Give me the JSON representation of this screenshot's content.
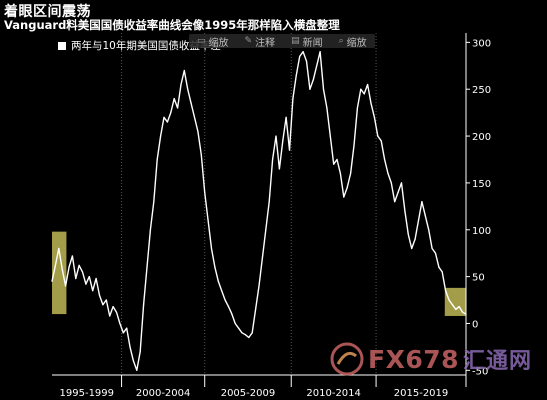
{
  "header": {
    "title": "着眼区间震荡",
    "subtitle": "Vanguard料美国国债收益率曲线会像1995年那样陷入横盘整理"
  },
  "legend": {
    "label": "两年与10年期美国国债收益率差"
  },
  "toolbar": {
    "items": [
      {
        "label": "缩放",
        "icon": "zoom-icon"
      },
      {
        "label": "注释",
        "icon": "pencil-icon"
      },
      {
        "label": "新闻",
        "icon": "news-icon"
      },
      {
        "label": "缩放",
        "icon": "search-icon"
      }
    ]
  },
  "watermark": {
    "brand": "FX678",
    "brand_cn": "汇通网"
  },
  "colors": {
    "background": "#000000",
    "line": "#ffffff",
    "highlight": "#e8e06a",
    "watermark_red": "#c86464"
  },
  "chart_data": {
    "type": "line",
    "title": "着眼区间震荡",
    "subtitle": "Vanguard料美国国债收益率曲线会像1995年那样陷入横盘整理",
    "xlabel": "",
    "ylabel": "",
    "ylim": [
      -55,
      310
    ],
    "yticks": [
      -50,
      0,
      50,
      100,
      150,
      200,
      250,
      300
    ],
    "ytick_labels": [
      "-50",
      "0",
      "50",
      "100",
      "150",
      "200",
      "250",
      "300"
    ],
    "x_range": [
      1995.0,
      2019.4
    ],
    "x_period_labels": [
      "1995-1999",
      "2000-2004",
      "2005-2009",
      "2010-2014",
      "2015-2019"
    ],
    "x_period_bounds": [
      1995.0,
      1999.1,
      2004.0,
      2009.1,
      2014.1,
      2019.4
    ],
    "legend_position": "top-left",
    "grid": "vertical dotted",
    "series": [
      {
        "name": "两年与10年期美国国债收益率差",
        "x": [
          1995.0,
          1995.2,
          1995.4,
          1995.6,
          1995.8,
          1996.0,
          1996.2,
          1996.4,
          1996.6,
          1996.8,
          1997.0,
          1997.2,
          1997.4,
          1997.6,
          1997.8,
          1998.0,
          1998.2,
          1998.4,
          1998.6,
          1998.8,
          1999.0,
          1999.2,
          1999.4,
          1999.6,
          1999.8,
          2000.0,
          2000.2,
          2000.4,
          2000.6,
          2000.8,
          2001.0,
          2001.2,
          2001.4,
          2001.6,
          2001.8,
          2002.0,
          2002.2,
          2002.4,
          2002.6,
          2002.8,
          2003.0,
          2003.2,
          2003.4,
          2003.6,
          2003.8,
          2004.0,
          2004.2,
          2004.4,
          2004.6,
          2004.8,
          2005.0,
          2005.2,
          2005.4,
          2005.6,
          2005.8,
          2006.0,
          2006.2,
          2006.4,
          2006.6,
          2006.8,
          2007.0,
          2007.2,
          2007.4,
          2007.6,
          2007.8,
          2008.0,
          2008.2,
          2008.4,
          2008.6,
          2008.8,
          2009.0,
          2009.2,
          2009.4,
          2009.6,
          2009.8,
          2010.0,
          2010.2,
          2010.4,
          2010.6,
          2010.8,
          2011.0,
          2011.2,
          2011.4,
          2011.6,
          2011.8,
          2012.0,
          2012.2,
          2012.4,
          2012.6,
          2012.8,
          2013.0,
          2013.2,
          2013.4,
          2013.6,
          2013.8,
          2014.0,
          2014.2,
          2014.4,
          2014.6,
          2014.8,
          2015.0,
          2015.2,
          2015.4,
          2015.6,
          2015.8,
          2016.0,
          2016.2,
          2016.4,
          2016.6,
          2016.8,
          2017.0,
          2017.2,
          2017.4,
          2017.6,
          2017.8,
          2018.0,
          2018.2,
          2018.4,
          2018.6,
          2018.8,
          2019.0,
          2019.2,
          2019.4
        ],
        "values": [
          45,
          62,
          80,
          58,
          40,
          60,
          72,
          48,
          62,
          55,
          42,
          50,
          35,
          48,
          30,
          20,
          25,
          8,
          18,
          12,
          0,
          -10,
          -5,
          -25,
          -40,
          -50,
          -30,
          20,
          60,
          100,
          130,
          175,
          200,
          220,
          215,
          225,
          240,
          230,
          255,
          270,
          250,
          235,
          220,
          205,
          180,
          140,
          110,
          80,
          60,
          45,
          35,
          25,
          18,
          10,
          0,
          -5,
          -10,
          -12,
          -15,
          -10,
          15,
          40,
          70,
          100,
          130,
          175,
          200,
          165,
          195,
          220,
          185,
          240,
          265,
          285,
          290,
          280,
          250,
          260,
          275,
          290,
          250,
          230,
          200,
          170,
          175,
          160,
          135,
          145,
          160,
          190,
          230,
          250,
          245,
          255,
          235,
          220,
          200,
          195,
          175,
          160,
          150,
          130,
          140,
          150,
          120,
          95,
          80,
          90,
          110,
          130,
          115,
          100,
          80,
          75,
          60,
          55,
          35,
          25,
          20,
          15,
          18,
          12,
          10
        ]
      }
    ],
    "highlights": [
      {
        "x_start": 1995.0,
        "x_end": 1995.85,
        "y_start": 10,
        "y_end": 98
      },
      {
        "x_start": 2018.15,
        "x_end": 2019.4,
        "y_start": 8,
        "y_end": 38
      }
    ]
  }
}
